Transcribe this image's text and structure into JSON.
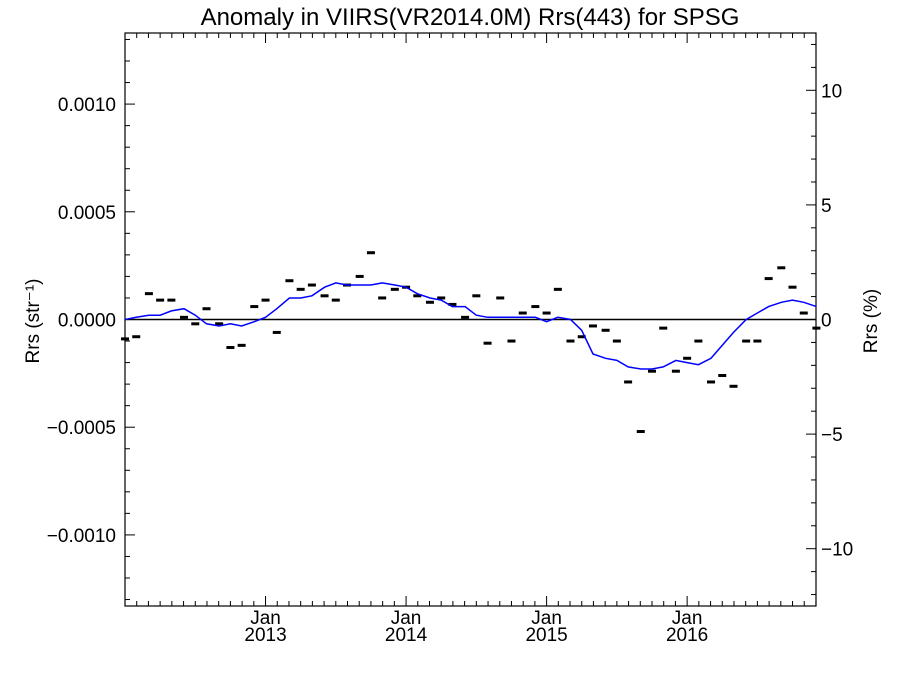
{
  "chart_data": {
    "type": "line",
    "title": "Anomaly in VIIRS(VR2014.0M) Rrs(443) for SPSG",
    "ylabel_left": "Rrs (str⁻¹)",
    "ylabel_right": "Rrs (%)",
    "xlim": [
      2012.0,
      2016.917
    ],
    "ylim_left": [
      -0.00133,
      0.00133
    ],
    "ylim_right": [
      -12.5,
      12.5
    ],
    "y_left_ticks": [
      {
        "value": 0.001,
        "label": "0.0010"
      },
      {
        "value": 0.0005,
        "label": "0.0005"
      },
      {
        "value": 0.0,
        "label": "0.0000"
      },
      {
        "value": -0.0005,
        "label": "−0.0005"
      },
      {
        "value": -0.001,
        "label": "−0.0010"
      }
    ],
    "y_right_ticks": [
      {
        "value": 10,
        "label": "10"
      },
      {
        "value": 5,
        "label": "5"
      },
      {
        "value": 0,
        "label": "0"
      },
      {
        "value": -5,
        "label": "−5"
      },
      {
        "value": -10,
        "label": "−10"
      }
    ],
    "x_ticks": [
      {
        "value": 2013.0,
        "line1": "Jan",
        "line2": "2013"
      },
      {
        "value": 2014.0,
        "line1": "Jan",
        "line2": "2014"
      },
      {
        "value": 2015.0,
        "line1": "Jan",
        "line2": "2015"
      },
      {
        "value": 2016.0,
        "line1": "Jan",
        "line2": "2016"
      }
    ],
    "zero_line": 0.0,
    "series": [
      {
        "kind": "markers",
        "color": "#000000",
        "x": [
          2012.0,
          2012.08,
          2012.17,
          2012.25,
          2012.33,
          2012.42,
          2012.5,
          2012.58,
          2012.67,
          2012.75,
          2012.83,
          2012.92,
          2013.0,
          2013.08,
          2013.17,
          2013.25,
          2013.33,
          2013.42,
          2013.5,
          2013.58,
          2013.67,
          2013.75,
          2013.83,
          2013.92,
          2014.0,
          2014.08,
          2014.17,
          2014.25,
          2014.33,
          2014.42,
          2014.5,
          2014.58,
          2014.67,
          2014.75,
          2014.83,
          2014.92,
          2015.0,
          2015.08,
          2015.17,
          2015.25,
          2015.33,
          2015.42,
          2015.5,
          2015.58,
          2015.67,
          2015.75,
          2015.83,
          2015.92,
          2016.0,
          2016.08,
          2016.17,
          2016.25,
          2016.33,
          2016.42,
          2016.5,
          2016.58,
          2016.67,
          2016.75,
          2016.83,
          2016.92
        ],
        "y": [
          -9e-05,
          -8e-05,
          0.00012,
          9e-05,
          9e-05,
          1e-05,
          -2e-05,
          5e-05,
          -2e-05,
          -0.00013,
          -0.00012,
          6e-05,
          9e-05,
          -6e-05,
          0.00018,
          0.00014,
          0.00016,
          0.00011,
          9e-05,
          0.00016,
          0.0002,
          0.00031,
          0.0001,
          0.00014,
          0.00015,
          0.00011,
          8e-05,
          0.0001,
          7e-05,
          1e-05,
          0.00011,
          -0.00011,
          0.0001,
          -0.0001,
          3e-05,
          6e-05,
          3e-05,
          0.00014,
          -0.0001,
          -8e-05,
          -3e-05,
          -5e-05,
          -0.0001,
          -0.00029,
          -0.00052,
          -0.00024,
          -4e-05,
          -0.00024,
          -0.00018,
          -0.0001,
          -0.00029,
          -0.00026,
          -0.00031,
          -0.0001,
          -0.0001,
          0.00019,
          0.00024,
          0.00015,
          3e-05,
          -4e-05
        ]
      },
      {
        "kind": "line",
        "color": "#0000ff",
        "x": [
          2012.0,
          2012.08,
          2012.17,
          2012.25,
          2012.33,
          2012.42,
          2012.5,
          2012.58,
          2012.67,
          2012.75,
          2012.83,
          2012.92,
          2013.0,
          2013.08,
          2013.17,
          2013.25,
          2013.33,
          2013.42,
          2013.5,
          2013.58,
          2013.67,
          2013.75,
          2013.83,
          2013.92,
          2014.0,
          2014.08,
          2014.17,
          2014.25,
          2014.33,
          2014.42,
          2014.5,
          2014.58,
          2014.67,
          2014.75,
          2014.83,
          2014.92,
          2015.0,
          2015.08,
          2015.17,
          2015.25,
          2015.33,
          2015.42,
          2015.5,
          2015.58,
          2015.67,
          2015.75,
          2015.83,
          2015.92,
          2016.0,
          2016.08,
          2016.17,
          2016.25,
          2016.33,
          2016.42,
          2016.5,
          2016.58,
          2016.67,
          2016.75,
          2016.83,
          2016.92
        ],
        "y": [
          0.0,
          1e-05,
          2e-05,
          2e-05,
          4e-05,
          5e-05,
          2e-05,
          -2e-05,
          -3e-05,
          -2e-05,
          -3e-05,
          -1e-05,
          1e-05,
          5e-05,
          0.0001,
          0.0001,
          0.00011,
          0.00015,
          0.00017,
          0.00016,
          0.00016,
          0.00016,
          0.00017,
          0.00016,
          0.00015,
          0.00012,
          0.0001,
          9e-05,
          6e-05,
          6e-05,
          2e-05,
          1e-05,
          1e-05,
          1e-05,
          1e-05,
          1e-05,
          -1e-05,
          1e-05,
          0.0,
          -5e-05,
          -0.00016,
          -0.00018,
          -0.00019,
          -0.00022,
          -0.00023,
          -0.00023,
          -0.00022,
          -0.00019,
          -0.0002,
          -0.00021,
          -0.00018,
          -0.00012,
          -6e-05,
          0.0,
          3e-05,
          6e-05,
          8e-05,
          9e-05,
          8e-05,
          6e-05
        ]
      }
    ]
  }
}
